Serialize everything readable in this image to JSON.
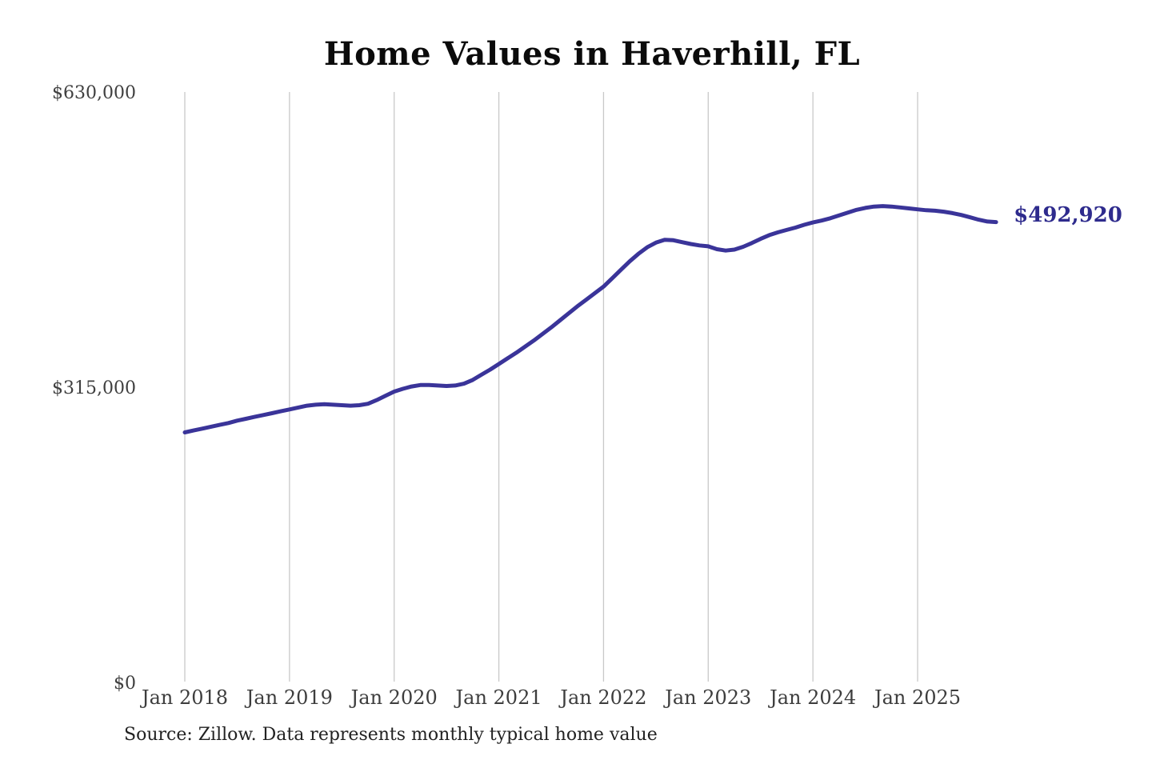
{
  "colors": {
    "background": "#ffffff",
    "line": "#3a3499",
    "end_label": "#2e2b8d",
    "gridline": "#c9c9c9",
    "axis_label": "#3f3f3f",
    "title": "#0b0b0b",
    "source": "#222222"
  },
  "chart_data": {
    "type": "line",
    "title": "Home Values in Haverhill, FL",
    "source_note": "Source: Zillow. Data represents monthly typical home value",
    "end_label": "$492,920",
    "frequency": "monthly",
    "x_start": "Jan 2018",
    "x_end": "Oct 2025",
    "x_tick_labels": [
      "Jan 2018",
      "Jan 2019",
      "Jan 2020",
      "Jan 2021",
      "Jan 2022",
      "Jan 2023",
      "Jan 2024",
      "Jan 2025"
    ],
    "y_tick_labels": [
      "$630,000",
      "$315,000",
      "$0"
    ],
    "y_ticks": [
      630000,
      315000,
      0
    ],
    "ylim": [
      0,
      630000
    ],
    "grid": "vertical-only",
    "legend": "none",
    "series": [
      {
        "name": "Typical home value",
        "color": "#3a3499",
        "values": [
          268500,
          270500,
          272500,
          274500,
          276500,
          278500,
          281000,
          283000,
          285000,
          287000,
          289000,
          291000,
          293000,
          295000,
          297000,
          298000,
          298500,
          298000,
          297500,
          297000,
          297500,
          299000,
          303000,
          307500,
          312000,
          315000,
          317500,
          319000,
          319000,
          318500,
          318000,
          318500,
          320500,
          324500,
          330000,
          335500,
          341500,
          347500,
          353500,
          360000,
          366500,
          373500,
          380500,
          388000,
          395500,
          403000,
          410000,
          417000,
          424000,
          433000,
          442000,
          451000,
          459000,
          466000,
          471000,
          474000,
          473500,
          471500,
          469500,
          468000,
          467000,
          464000,
          462500,
          463500,
          466500,
          470500,
          475000,
          479000,
          482000,
          484500,
          487000,
          490000,
          492500,
          494500,
          497000,
          500000,
          503000,
          506000,
          508000,
          509500,
          510000,
          509500,
          508500,
          507500,
          506500,
          505500,
          505000,
          504000,
          502500,
          500500,
          498000,
          495500,
          493500,
          492920
        ]
      }
    ]
  }
}
